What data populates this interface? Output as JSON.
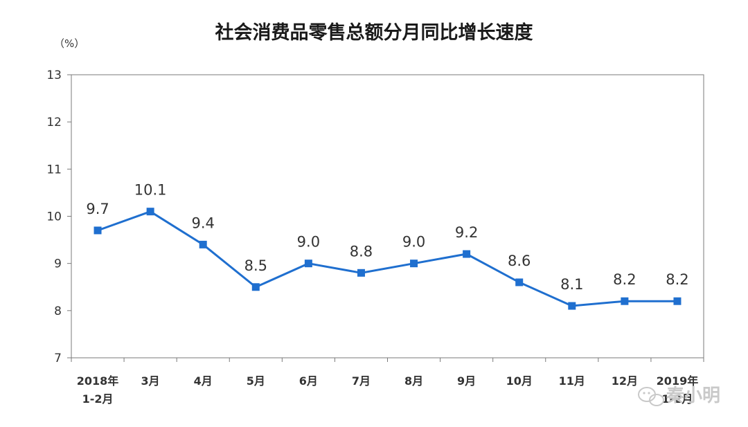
{
  "chart_data": {
    "type": "line",
    "title": "社会消费品零售总额分月同比增长速度",
    "unit_label": "（%）",
    "ylim": [
      7,
      13
    ],
    "yticks": [
      7,
      8,
      9,
      10,
      11,
      12,
      13
    ],
    "categories": [
      [
        "2018年",
        "1-2月"
      ],
      [
        "3月"
      ],
      [
        "4月"
      ],
      [
        "5月"
      ],
      [
        "6月"
      ],
      [
        "7月"
      ],
      [
        "8月"
      ],
      [
        "9月"
      ],
      [
        "10月"
      ],
      [
        "11月"
      ],
      [
        "12月"
      ],
      [
        "2019年",
        "1-2月"
      ]
    ],
    "values": [
      9.7,
      10.1,
      9.4,
      8.5,
      9.0,
      8.8,
      9.0,
      9.2,
      8.6,
      8.1,
      8.2,
      8.2
    ],
    "data_labels": [
      "9.7",
      "10.1",
      "9.4",
      "8.5",
      "9.0",
      "8.8",
      "9.0",
      "9.2",
      "8.6",
      "8.1",
      "8.2",
      "8.2"
    ],
    "series_color": "#1f6fcf",
    "grid": false
  },
  "watermark": {
    "text": "秦小明",
    "icon": "wechat-icon"
  }
}
